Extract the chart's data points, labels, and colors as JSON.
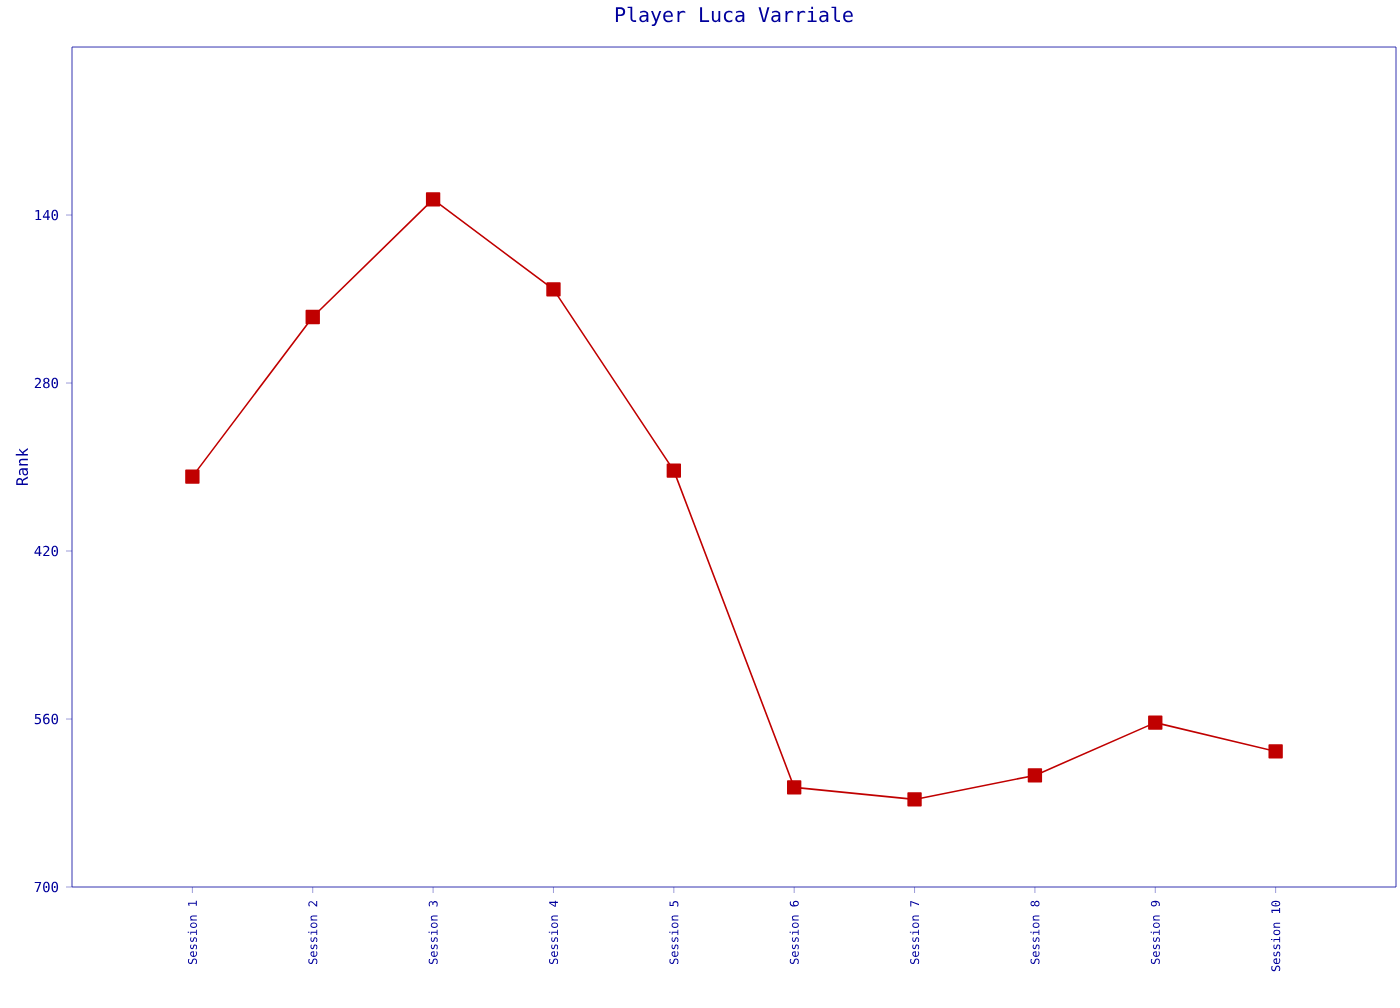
{
  "chart_data": {
    "type": "line",
    "title": "Player Luca Varriale",
    "ylabel": "Rank",
    "categories": [
      "Session 1",
      "Session 2",
      "Session 3",
      "Session 4",
      "Session 5",
      "Session 6",
      "Session 7",
      "Session 8",
      "Session 9",
      "Session 10"
    ],
    "series": [
      {
        "color": "#c00000",
        "values": [
          358,
          225,
          127,
          202,
          353,
          617,
          627,
          607,
          563,
          587
        ]
      }
    ],
    "ylim": [
      700,
      0
    ],
    "yticks": [
      140,
      280,
      420,
      560,
      700
    ],
    "grid": false,
    "marker": "square",
    "line_style": "solid"
  }
}
